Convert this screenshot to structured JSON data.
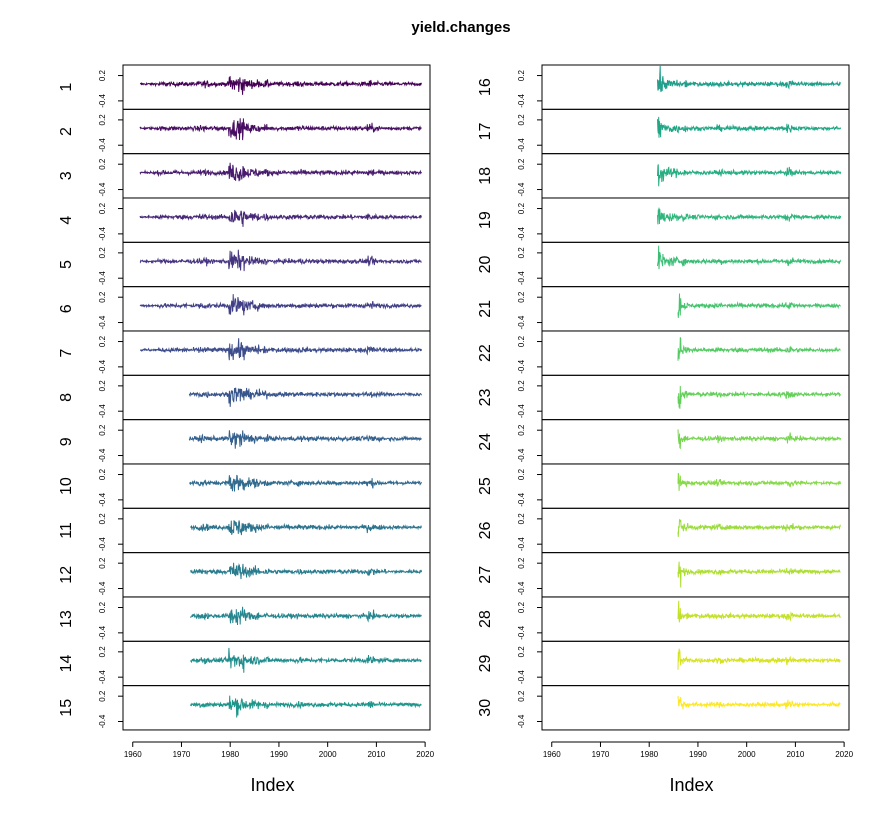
{
  "chart_data": {
    "type": "line",
    "title": "yield.changes",
    "xlabel": "Index",
    "ylabel_ticks": [
      "-0.4",
      "0.2"
    ],
    "x_ticks": [
      "1960",
      "1970",
      "1980",
      "1990",
      "2000",
      "2010",
      "2020"
    ],
    "xlim": [
      1958,
      2021
    ],
    "ylim": [
      -0.6,
      0.45
    ],
    "layout": "two stacked columns of 15 panels, shared time axis",
    "series": [
      {
        "name": "1",
        "color": "#440154",
        "start_year": 1961.5,
        "end_year": 2019.3
      },
      {
        "name": "2",
        "color": "#470E61",
        "start_year": 1961.5,
        "end_year": 2019.3
      },
      {
        "name": "3",
        "color": "#481B6D",
        "start_year": 1961.5,
        "end_year": 2019.3
      },
      {
        "name": "4",
        "color": "#472877",
        "start_year": 1961.5,
        "end_year": 2019.3
      },
      {
        "name": "5",
        "color": "#45347F",
        "start_year": 1961.5,
        "end_year": 2019.3
      },
      {
        "name": "6",
        "color": "#414087",
        "start_year": 1961.5,
        "end_year": 2019.3
      },
      {
        "name": "7",
        "color": "#3D4C8A",
        "start_year": 1961.5,
        "end_year": 2019.3
      },
      {
        "name": "8",
        "color": "#39568C",
        "start_year": 1971.6,
        "end_year": 2019.3
      },
      {
        "name": "9",
        "color": "#34618D",
        "start_year": 1971.6,
        "end_year": 2019.3
      },
      {
        "name": "10",
        "color": "#306A8E",
        "start_year": 1971.6,
        "end_year": 2019.3
      },
      {
        "name": "11",
        "color": "#2C738E",
        "start_year": 1971.9,
        "end_year": 2019.3
      },
      {
        "name": "12",
        "color": "#297C8E",
        "start_year": 1971.9,
        "end_year": 2019.3
      },
      {
        "name": "13",
        "color": "#25858E",
        "start_year": 1971.9,
        "end_year": 2019.3
      },
      {
        "name": "14",
        "color": "#228D8D",
        "start_year": 1971.9,
        "end_year": 2019.3
      },
      {
        "name": "15",
        "color": "#1F968B",
        "start_year": 1971.9,
        "end_year": 2019.3
      },
      {
        "name": "16",
        "color": "#1F9E89",
        "start_year": 1981.7,
        "end_year": 2019.3
      },
      {
        "name": "17",
        "color": "#21A685",
        "start_year": 1981.7,
        "end_year": 2019.3
      },
      {
        "name": "18",
        "color": "#26AD81",
        "start_year": 1981.7,
        "end_year": 2019.3
      },
      {
        "name": "19",
        "color": "#2EB67C",
        "start_year": 1981.7,
        "end_year": 2019.3
      },
      {
        "name": "20",
        "color": "#39BD75",
        "start_year": 1981.7,
        "end_year": 2019.3
      },
      {
        "name": "21",
        "color": "#45C46D",
        "start_year": 1985.9,
        "end_year": 2019.3
      },
      {
        "name": "22",
        "color": "#54CA63",
        "start_year": 1985.9,
        "end_year": 2019.3
      },
      {
        "name": "23",
        "color": "#63CF5A",
        "start_year": 1985.9,
        "end_year": 2019.3
      },
      {
        "name": "24",
        "color": "#75D54F",
        "start_year": 1985.9,
        "end_year": 2019.3
      },
      {
        "name": "25",
        "color": "#87D948",
        "start_year": 1985.9,
        "end_year": 2019.3
      },
      {
        "name": "26",
        "color": "#9ADC3C",
        "start_year": 1985.9,
        "end_year": 2019.3
      },
      {
        "name": "27",
        "color": "#ADDF31",
        "start_year": 1985.9,
        "end_year": 2019.3
      },
      {
        "name": "28",
        "color": "#C2E128",
        "start_year": 1985.9,
        "end_year": 2019.3
      },
      {
        "name": "29",
        "color": "#D6E322",
        "start_year": 1985.9,
        "end_year": 2019.3
      },
      {
        "name": "30",
        "color": "#FDE725",
        "start_year": 1985.9,
        "end_year": 2019.3
      }
    ],
    "grid": false,
    "legend": "none (panel labels on left of each panel)"
  }
}
